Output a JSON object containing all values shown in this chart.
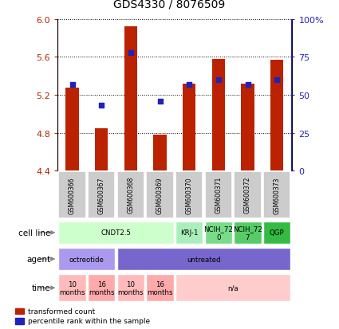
{
  "title": "GDS4330 / 8076509",
  "samples": [
    "GSM600366",
    "GSM600367",
    "GSM600368",
    "GSM600369",
    "GSM600370",
    "GSM600371",
    "GSM600372",
    "GSM600373"
  ],
  "bar_values": [
    5.28,
    4.85,
    5.92,
    4.78,
    5.32,
    5.58,
    5.32,
    5.57
  ],
  "bar_bottom": 4.4,
  "percentile_values": [
    57,
    43,
    78,
    46,
    57,
    60,
    57,
    60
  ],
  "ylim": [
    4.4,
    6.0
  ],
  "y2lim": [
    0,
    100
  ],
  "yticks": [
    4.4,
    4.8,
    5.2,
    5.6,
    6.0
  ],
  "y2ticks": [
    0,
    25,
    50,
    75,
    100
  ],
  "y2ticklabels": [
    "0",
    "25",
    "50",
    "75",
    "100%"
  ],
  "bar_color": "#bb2200",
  "percentile_color": "#2222bb",
  "bg_color": "#ffffff",
  "cell_line_groups": [
    {
      "label": "CNDT2.5",
      "cols": [
        0,
        1,
        2,
        3
      ],
      "color": "#ccffcc"
    },
    {
      "label": "KRJ-1",
      "cols": [
        4
      ],
      "color": "#aaeebb"
    },
    {
      "label": "NCIH_72\n0",
      "cols": [
        5
      ],
      "color": "#77dd88"
    },
    {
      "label": "NCIH_72\n7",
      "cols": [
        6
      ],
      "color": "#55cc66"
    },
    {
      "label": "QGP",
      "cols": [
        7
      ],
      "color": "#33bb44"
    }
  ],
  "agent_groups": [
    {
      "label": "octreotide",
      "cols": [
        0,
        1
      ],
      "color": "#aa99ee"
    },
    {
      "label": "untreated",
      "cols": [
        2,
        3,
        4,
        5,
        6,
        7
      ],
      "color": "#7766cc"
    }
  ],
  "time_groups": [
    {
      "label": "10\nmonths",
      "cols": [
        0
      ],
      "color": "#ffbbbb"
    },
    {
      "label": "16\nmonths",
      "cols": [
        1
      ],
      "color": "#ffaaaa"
    },
    {
      "label": "10\nmonths",
      "cols": [
        2
      ],
      "color": "#ffbbbb"
    },
    {
      "label": "16\nmonths",
      "cols": [
        3
      ],
      "color": "#ffaaaa"
    },
    {
      "label": "n/a",
      "cols": [
        4,
        5,
        6,
        7
      ],
      "color": "#ffcccc"
    }
  ],
  "row_labels": [
    "cell line",
    "agent",
    "time"
  ],
  "legend_items": [
    {
      "label": "transformed count",
      "color": "#bb2200"
    },
    {
      "label": "percentile rank within the sample",
      "color": "#2222bb"
    }
  ]
}
